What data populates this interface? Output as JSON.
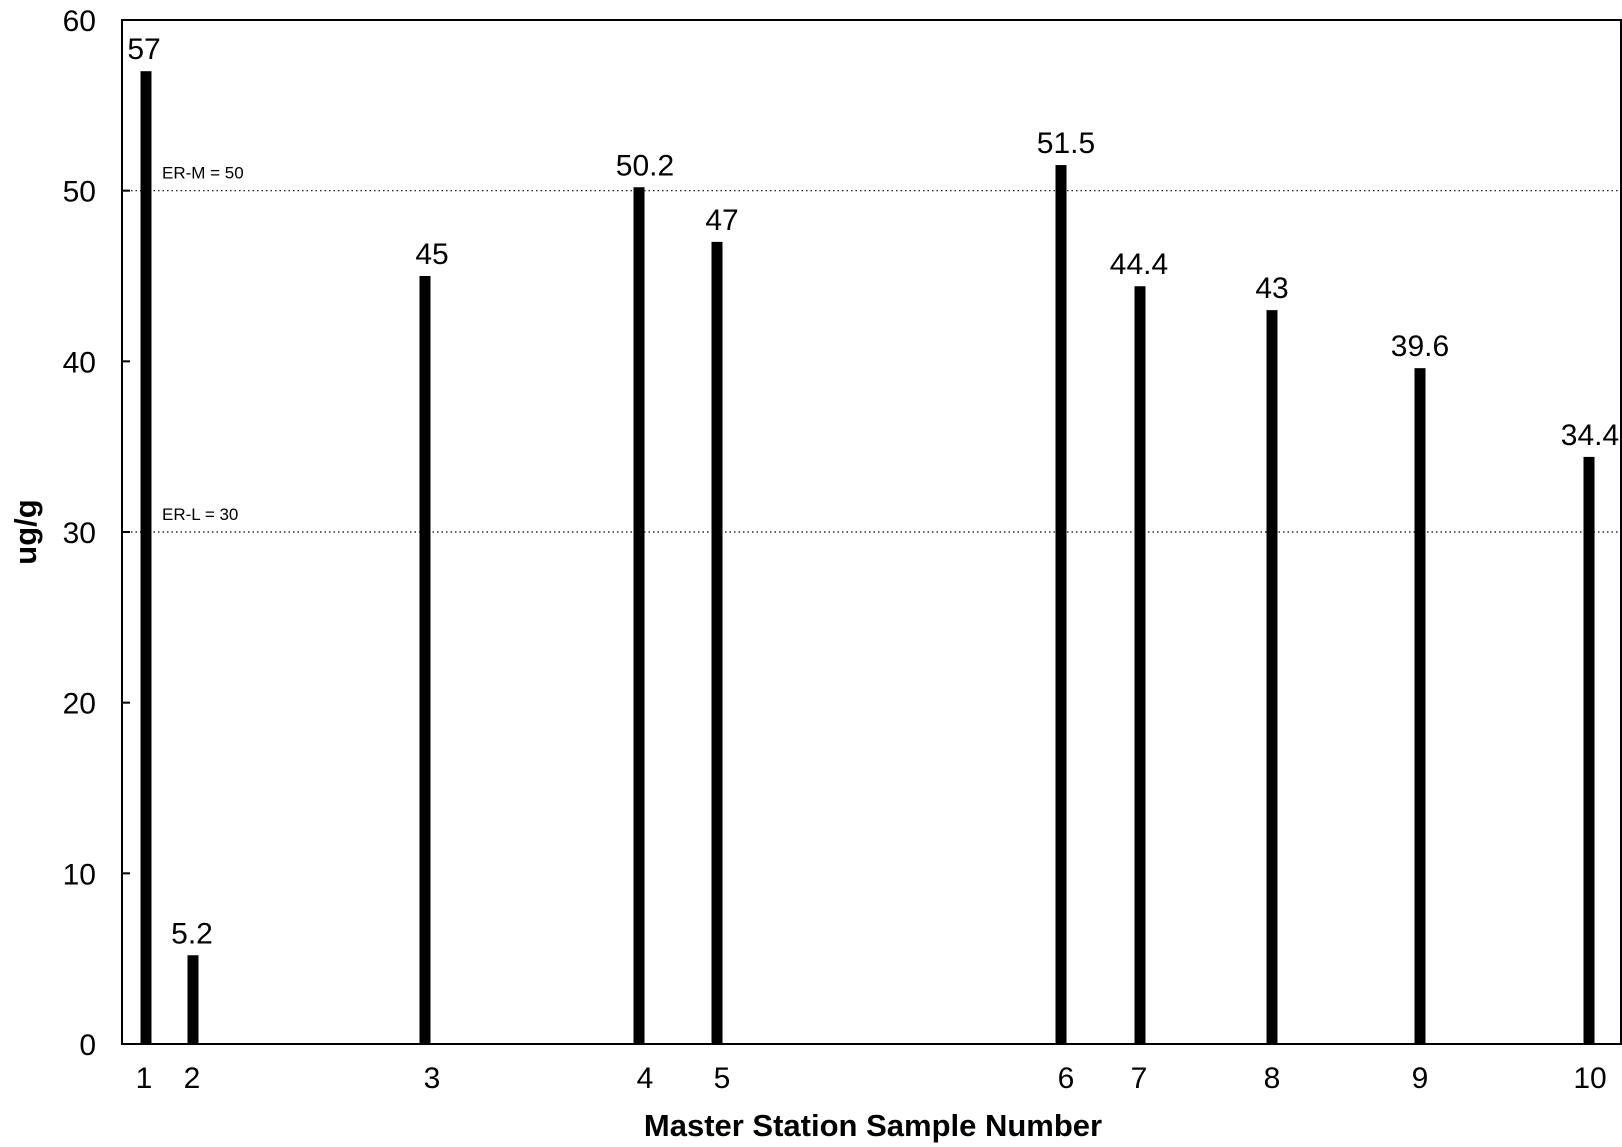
{
  "chart_data": {
    "type": "bar",
    "categories": [
      "1",
      "2",
      "3",
      "4",
      "5",
      "6",
      "7",
      "8",
      "9",
      "10"
    ],
    "values": [
      57,
      5.2,
      45,
      50.2,
      47,
      51.5,
      44.4,
      43,
      39.6,
      34.4
    ],
    "value_labels": [
      "57",
      "5.2",
      "45",
      "50.2",
      "47",
      "51.5",
      "44.4",
      "43",
      "39.6",
      "34.4"
    ],
    "xlabel": "Master Station Sample Number",
    "ylabel": "ug/g",
    "ylim": [
      0,
      60
    ],
    "yticks": [
      "0",
      "10",
      "20",
      "30",
      "40",
      "50",
      "60"
    ],
    "reference_lines": [
      {
        "label": "ER-M = 50",
        "value": 50
      },
      {
        "label": "ER-L = 30",
        "value": 30
      }
    ],
    "grid": false,
    "legend": "none",
    "colors": {
      "bars": "#000000",
      "reference_lines": "#000000"
    }
  }
}
